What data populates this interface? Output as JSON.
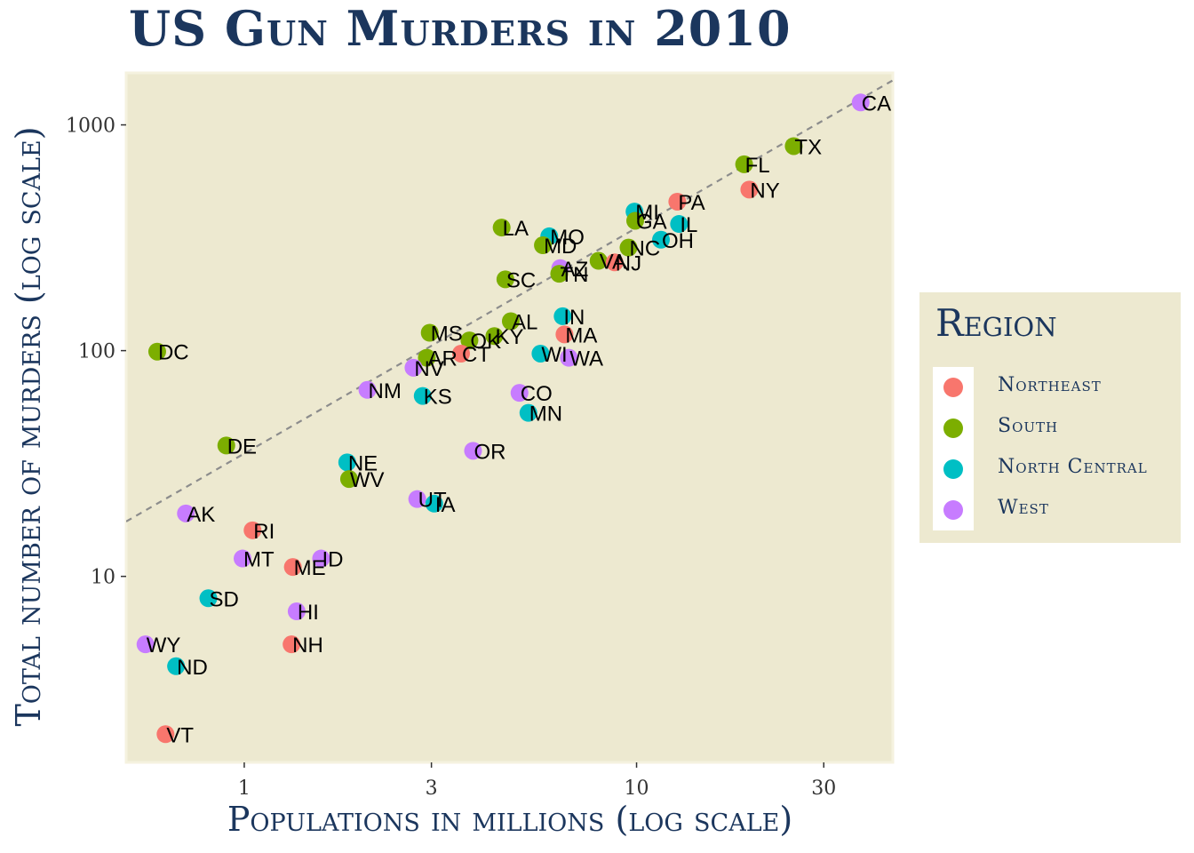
{
  "title": "US Gun Murders in 2010",
  "chart_data": {
    "type": "scatter",
    "title": "US Gun Murders in 2010",
    "xlabel": "Populations in millions (log scale)",
    "ylabel": "Total number of murders (log scale)",
    "x_scale": "log10",
    "y_scale": "log10",
    "xlim": [
      0.5,
      45
    ],
    "ylim": [
      1.5,
      1700
    ],
    "x_ticks": [
      {
        "value": 1,
        "label": "1"
      },
      {
        "value": 3,
        "label": "3"
      },
      {
        "value": 10,
        "label": "10"
      },
      {
        "value": 30,
        "label": "30"
      }
    ],
    "y_ticks": [
      {
        "value": 10,
        "label": "10"
      },
      {
        "value": 100,
        "label": "100"
      },
      {
        "value": 1000,
        "label": "1000"
      }
    ],
    "reference_line": {
      "style": "dashed",
      "slope": 1,
      "murders_per_million": 35
    },
    "grid": false,
    "legend_position": "right",
    "legend_title": "Region",
    "regions": [
      {
        "name": "Northeast",
        "color": "#f8766d"
      },
      {
        "name": "South",
        "color": "#7cae00"
      },
      {
        "name": "North Central",
        "color": "#00bfc4"
      },
      {
        "name": "West",
        "color": "#c77cff"
      }
    ],
    "points": [
      {
        "label": "CA",
        "x": 37.25,
        "y": 1257,
        "region": "West"
      },
      {
        "label": "TX",
        "x": 25.15,
        "y": 805,
        "region": "South"
      },
      {
        "label": "FL",
        "x": 18.8,
        "y": 669,
        "region": "South"
      },
      {
        "label": "NY",
        "x": 19.38,
        "y": 517,
        "region": "Northeast"
      },
      {
        "label": "PA",
        "x": 12.7,
        "y": 457,
        "region": "Northeast"
      },
      {
        "label": "MI",
        "x": 9.88,
        "y": 413,
        "region": "North Central"
      },
      {
        "label": "GA",
        "x": 9.92,
        "y": 376,
        "region": "South"
      },
      {
        "label": "IL",
        "x": 12.83,
        "y": 364,
        "region": "North Central"
      },
      {
        "label": "OH",
        "x": 11.54,
        "y": 310,
        "region": "North Central"
      },
      {
        "label": "LA",
        "x": 4.53,
        "y": 351,
        "region": "South"
      },
      {
        "label": "MO",
        "x": 5.99,
        "y": 321,
        "region": "North Central"
      },
      {
        "label": "MD",
        "x": 5.77,
        "y": 293,
        "region": "South"
      },
      {
        "label": "NC",
        "x": 9.54,
        "y": 286,
        "region": "South"
      },
      {
        "label": "VA",
        "x": 8.0,
        "y": 250,
        "region": "South"
      },
      {
        "label": "NJ",
        "x": 8.79,
        "y": 246,
        "region": "Northeast"
      },
      {
        "label": "AZ",
        "x": 6.39,
        "y": 232,
        "region": "West"
      },
      {
        "label": "TN",
        "x": 6.35,
        "y": 219,
        "region": "South"
      },
      {
        "label": "SC",
        "x": 4.63,
        "y": 207,
        "region": "South"
      },
      {
        "label": "IN",
        "x": 6.48,
        "y": 142,
        "region": "North Central"
      },
      {
        "label": "AL",
        "x": 4.78,
        "y": 135,
        "region": "South"
      },
      {
        "label": "MA",
        "x": 6.55,
        "y": 118,
        "region": "Northeast"
      },
      {
        "label": "MS",
        "x": 2.97,
        "y": 120,
        "region": "South"
      },
      {
        "label": "OK",
        "x": 3.75,
        "y": 111,
        "region": "South"
      },
      {
        "label": "KY",
        "x": 4.34,
        "y": 116,
        "region": "South"
      },
      {
        "label": "CT",
        "x": 3.57,
        "y": 97,
        "region": "Northeast"
      },
      {
        "label": "AR",
        "x": 2.92,
        "y": 93,
        "region": "South"
      },
      {
        "label": "WI",
        "x": 5.69,
        "y": 97,
        "region": "North Central"
      },
      {
        "label": "WA",
        "x": 6.72,
        "y": 93,
        "region": "West"
      },
      {
        "label": "DC",
        "x": 0.6,
        "y": 99,
        "region": "South"
      },
      {
        "label": "NV",
        "x": 2.7,
        "y": 84,
        "region": "West"
      },
      {
        "label": "NM",
        "x": 2.06,
        "y": 67,
        "region": "West"
      },
      {
        "label": "KS",
        "x": 2.85,
        "y": 63,
        "region": "North Central"
      },
      {
        "label": "CO",
        "x": 5.03,
        "y": 65,
        "region": "West"
      },
      {
        "label": "MN",
        "x": 5.3,
        "y": 53,
        "region": "North Central"
      },
      {
        "label": "DE",
        "x": 0.9,
        "y": 38,
        "region": "South"
      },
      {
        "label": "OR",
        "x": 3.83,
        "y": 36,
        "region": "West"
      },
      {
        "label": "NE",
        "x": 1.83,
        "y": 32,
        "region": "North Central"
      },
      {
        "label": "WV",
        "x": 1.85,
        "y": 27,
        "region": "South"
      },
      {
        "label": "UT",
        "x": 2.76,
        "y": 22,
        "region": "West"
      },
      {
        "label": "IA",
        "x": 3.05,
        "y": 21,
        "region": "North Central"
      },
      {
        "label": "AK",
        "x": 0.71,
        "y": 19,
        "region": "West"
      },
      {
        "label": "RI",
        "x": 1.05,
        "y": 16,
        "region": "Northeast"
      },
      {
        "label": "MT",
        "x": 0.99,
        "y": 12,
        "region": "West"
      },
      {
        "label": "ME",
        "x": 1.33,
        "y": 11,
        "region": "Northeast"
      },
      {
        "label": "ID",
        "x": 1.57,
        "y": 12,
        "region": "West"
      },
      {
        "label": "SD",
        "x": 0.81,
        "y": 8,
        "region": "North Central"
      },
      {
        "label": "HI",
        "x": 1.36,
        "y": 7,
        "region": "West"
      },
      {
        "label": "NH",
        "x": 1.32,
        "y": 5,
        "region": "Northeast"
      },
      {
        "label": "WY",
        "x": 0.56,
        "y": 5,
        "region": "West"
      },
      {
        "label": "ND",
        "x": 0.67,
        "y": 4,
        "region": "North Central"
      },
      {
        "label": "VT",
        "x": 0.63,
        "y": 2,
        "region": "Northeast"
      }
    ]
  }
}
